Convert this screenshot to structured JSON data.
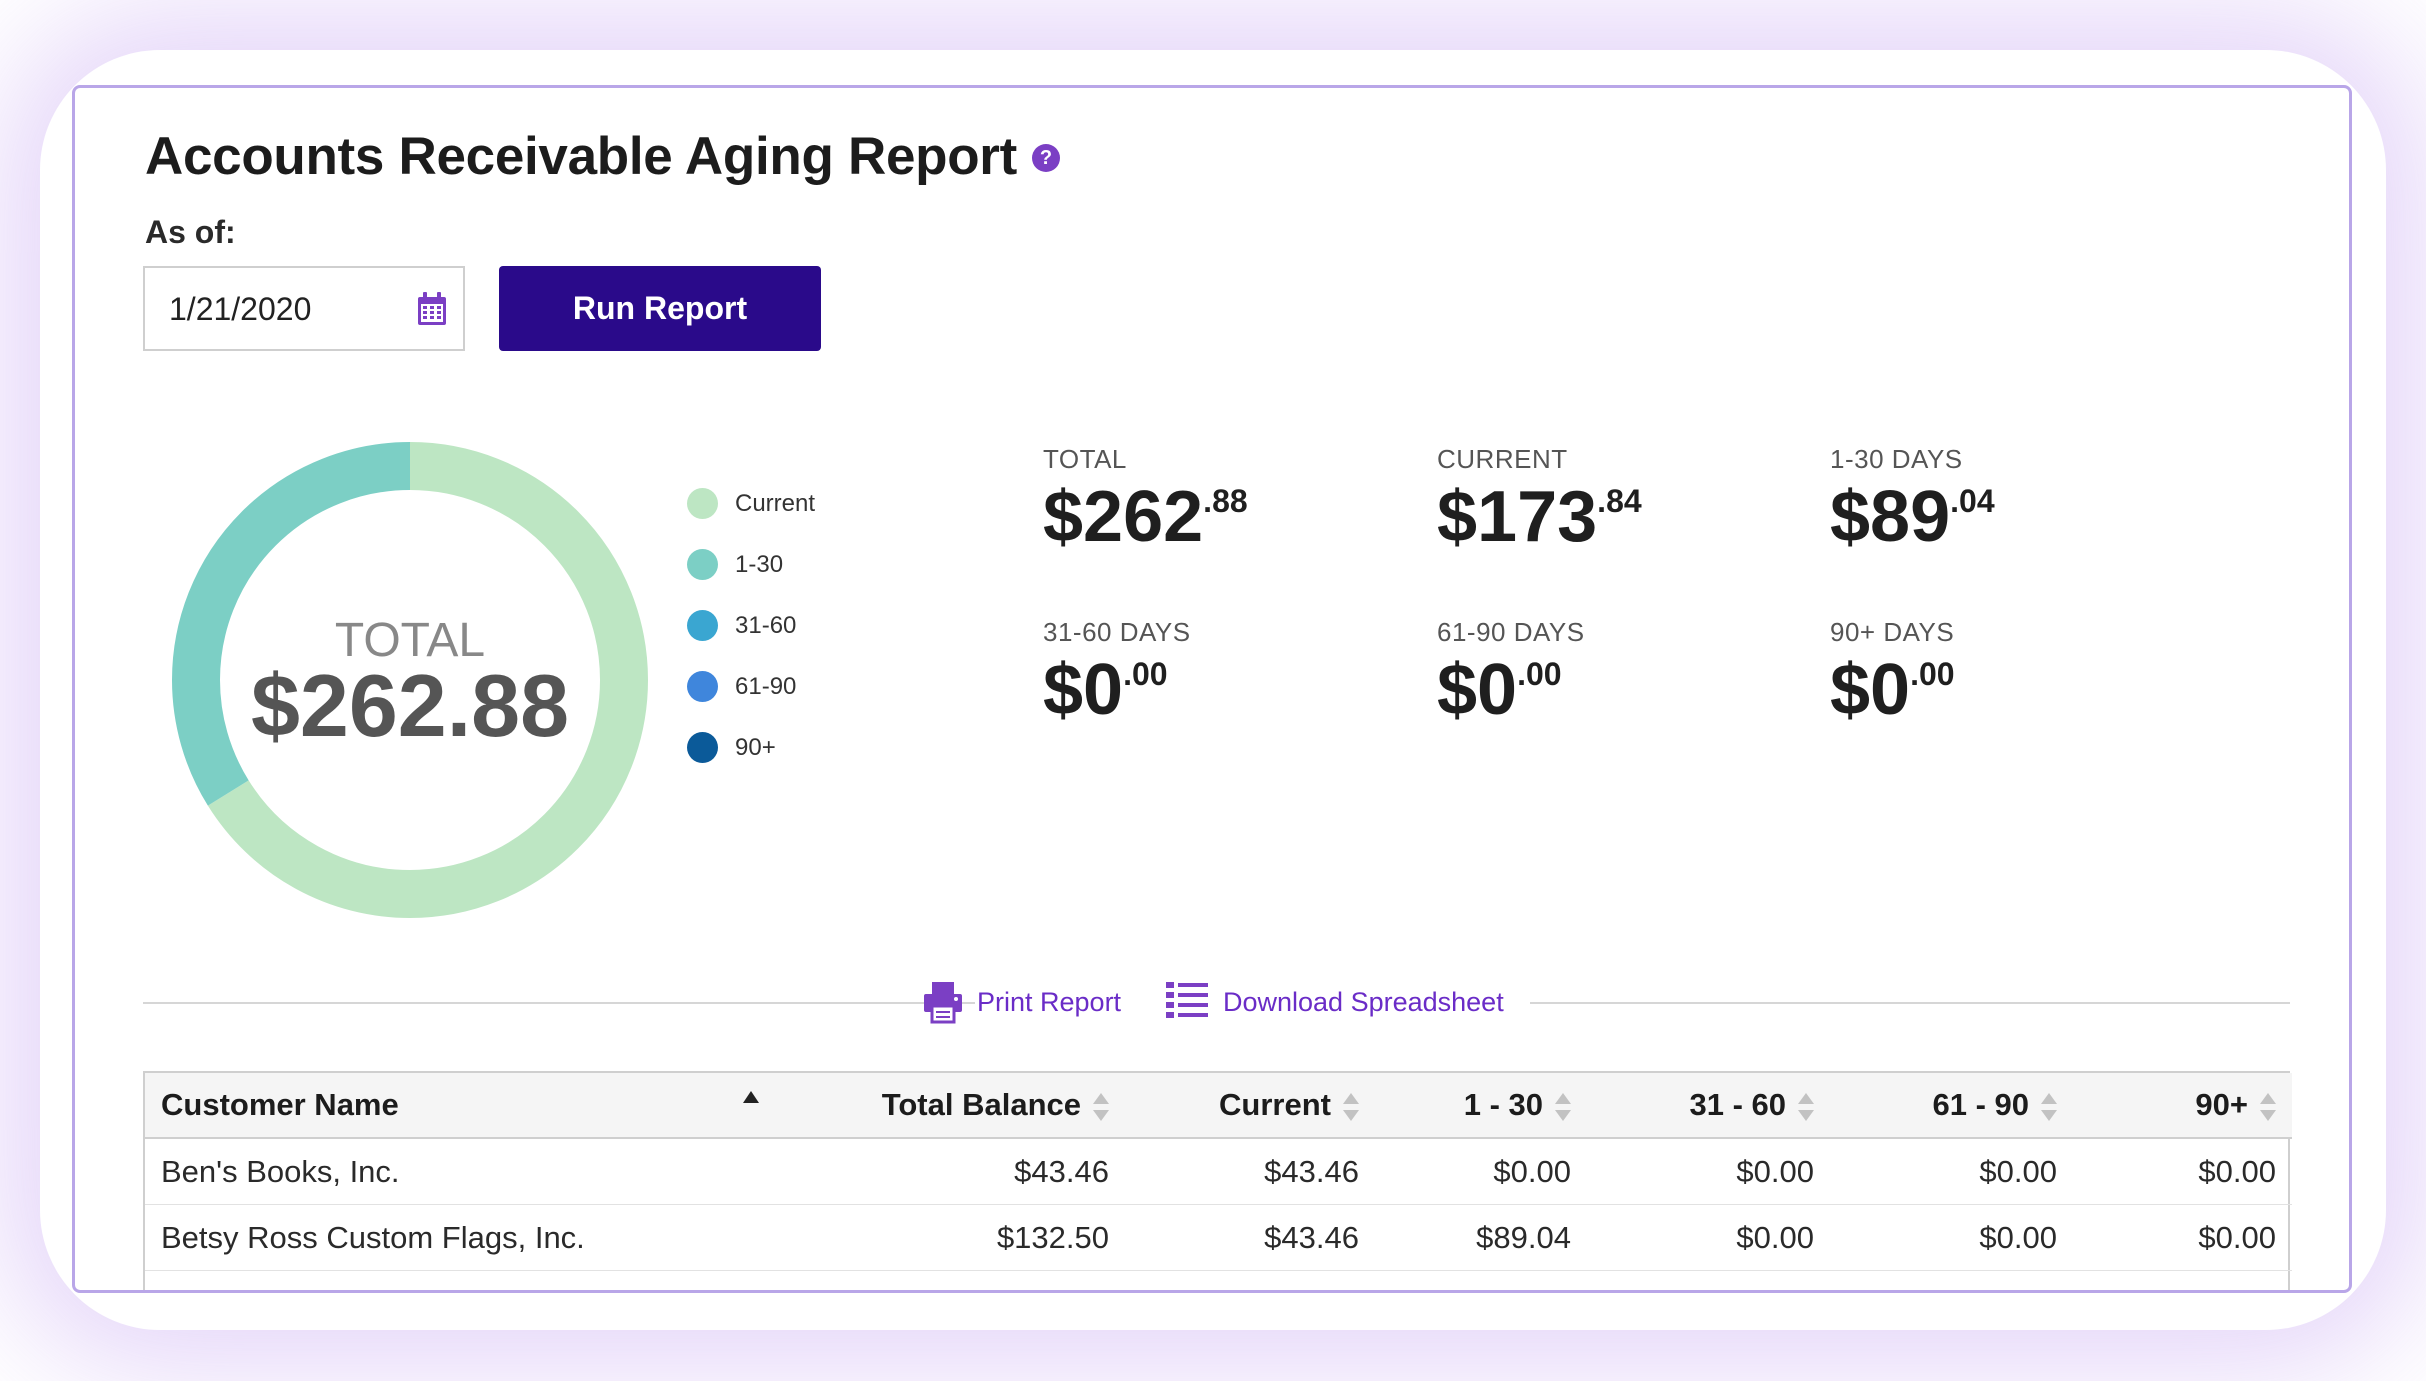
{
  "report": {
    "title": "Accounts Receivable Aging Report",
    "help_icon": "question-icon",
    "as_of_label": "As of:",
    "as_of_value": "1/21/2020",
    "run_button_label": "Run Report"
  },
  "chart_data": {
    "type": "pie",
    "title": "",
    "center_label": "TOTAL",
    "center_value": "$262.88",
    "categories": [
      "Current",
      "1-30",
      "31-60",
      "61-90",
      "90+"
    ],
    "values": [
      173.84,
      89.04,
      0,
      0,
      0
    ],
    "colors": [
      "#bde6c3",
      "#7ccfc5",
      "#3aa6d1",
      "#3f86dc",
      "#0b5a99"
    ],
    "legend_position": "right"
  },
  "stats": [
    {
      "label": "TOTAL",
      "whole": "$262",
      "cents": ".88"
    },
    {
      "label": "CURRENT",
      "whole": "$173",
      "cents": ".84"
    },
    {
      "label": "1-30 DAYS",
      "whole": "$89",
      "cents": ".04"
    },
    {
      "label": "31-60 DAYS",
      "whole": "$0",
      "cents": ".00"
    },
    {
      "label": "61-90 DAYS",
      "whole": "$0",
      "cents": ".00"
    },
    {
      "label": "90+ DAYS",
      "whole": "$0",
      "cents": ".00"
    }
  ],
  "actions": {
    "print_label": "Print Report",
    "print_icon": "printer-icon",
    "download_label": "Download Spreadsheet",
    "download_icon": "list-icon"
  },
  "table": {
    "headers": [
      "Customer Name",
      "Total Balance",
      "Current",
      "1 - 30",
      "31 - 60",
      "61 - 90",
      "90+"
    ],
    "rows": [
      [
        "Ben's Books, Inc.",
        "$43.46",
        "$43.46",
        "$0.00",
        "$0.00",
        "$0.00",
        "$0.00"
      ],
      [
        "Betsy Ross Custom Flags, Inc.",
        "$132.50",
        "$43.46",
        "$89.04",
        "$0.00",
        "$0.00",
        "$0.00"
      ]
    ]
  },
  "colors": {
    "accent": "#2a0a8a",
    "link": "#6a2cc7",
    "card_border": "#b9a6e8"
  }
}
